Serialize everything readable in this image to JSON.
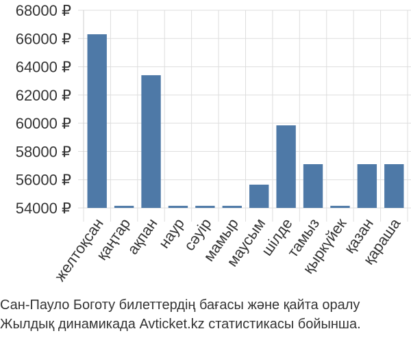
{
  "chart_data": {
    "type": "bar",
    "categories": [
      "желтоқсан",
      "қаңтар",
      "ақпан",
      "наур",
      "сәуір",
      "мамыр",
      "маусым",
      "шілде",
      "тамыз",
      "қыркүйек",
      "қазан",
      "қараша"
    ],
    "values": [
      66300,
      54150,
      63400,
      54150,
      54150,
      54150,
      55650,
      59850,
      57100,
      54150,
      57100,
      57100
    ],
    "yticks": [
      54000,
      56000,
      58000,
      60000,
      62000,
      64000,
      66000,
      68000
    ],
    "ytick_labels": [
      "54000 ₽",
      "56000 ₽",
      "58000 ₽",
      "60000 ₽",
      "62000 ₽",
      "64000 ₽",
      "66000 ₽",
      "68000 ₽"
    ],
    "ylim": [
      54000,
      68000
    ],
    "bar_color": "#4e79a7",
    "grid": true,
    "title": "",
    "xlabel": "",
    "ylabel": ""
  },
  "caption": {
    "line1": "Сан-Пауло Боготу билеттердің бағасы және қайта оралу",
    "line2": "Жылдық динамикада Avticket.kz статистикасы бойынша."
  }
}
